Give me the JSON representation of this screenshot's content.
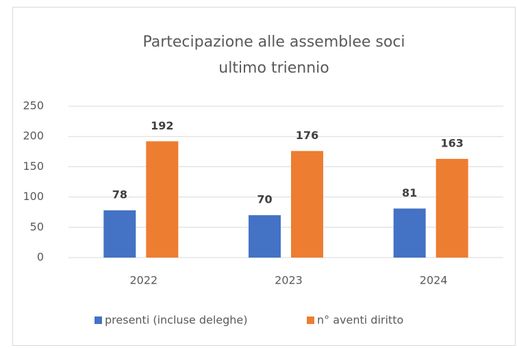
{
  "chart_data": {
    "type": "bar",
    "title": [
      "Partecipazione alle assemblee soci",
      "ultimo triennio"
    ],
    "categories": [
      "2022",
      "2023",
      "2024"
    ],
    "series": [
      {
        "name": "presenti (incluse deleghe)",
        "color": "#4472c4",
        "values": [
          78,
          70,
          81
        ]
      },
      {
        "name": "n° aventi diritto",
        "color": "#ed7d31",
        "values": [
          192,
          176,
          163
        ]
      }
    ],
    "ylim": [
      0,
      250
    ],
    "yticks": [
      0,
      50,
      100,
      150,
      200,
      250
    ],
    "grid": true,
    "legend": "bottom"
  }
}
